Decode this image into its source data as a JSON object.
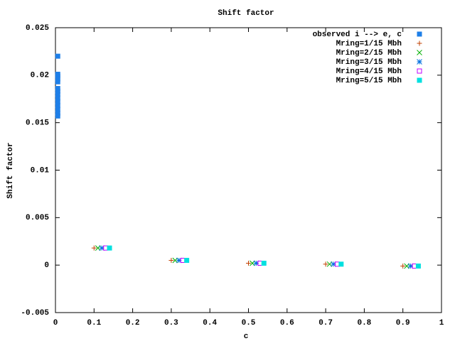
{
  "chart_data": {
    "type": "scatter",
    "title": "Shift factor",
    "x_label": "c",
    "y_label": "Shift factor",
    "xlim": [
      0,
      1
    ],
    "ylim": [
      -0.005,
      0.025
    ],
    "xticks": [
      0,
      0.1,
      0.2,
      0.3,
      0.4,
      0.5,
      0.6,
      0.7,
      0.8,
      0.9,
      1
    ],
    "yticks": [
      -0.005,
      0,
      0.005,
      0.01,
      0.015,
      0.02,
      0.025
    ],
    "legend": "top-right",
    "series": [
      {
        "name": "observed i --> e, c",
        "color": "#1e7fe8",
        "marker": "filled-square",
        "x": [
          0.006,
          0.006,
          0.006,
          0.006,
          0.006,
          0.006,
          0.006,
          0.006,
          0.006,
          0.006,
          0.006,
          0.006,
          0.006,
          0.006
        ],
        "values": [
          0.022,
          0.0201,
          0.0199,
          0.0196,
          0.0193,
          0.0186,
          0.0183,
          0.018,
          0.0176,
          0.0172,
          0.0168,
          0.0164,
          0.016,
          0.0157
        ]
      },
      {
        "name": "Mring=1/15 Mbh",
        "color": "#c04000",
        "marker": "plus",
        "x": [
          0.1,
          0.3,
          0.5,
          0.7,
          0.9
        ],
        "values": [
          0.0018,
          0.0005,
          0.0002,
          0.0001,
          -0.0001
        ]
      },
      {
        "name": "Mring=2/15 Mbh",
        "color": "#00b000",
        "marker": "cross",
        "x": [
          0.11,
          0.31,
          0.51,
          0.71,
          0.91
        ],
        "values": [
          0.0018,
          0.0005,
          0.0002,
          0.0001,
          -0.0001
        ]
      },
      {
        "name": "Mring=3/15 Mbh",
        "color": "#0070e0",
        "marker": "star",
        "x": [
          0.12,
          0.32,
          0.52,
          0.72,
          0.92
        ],
        "values": [
          0.0018,
          0.0005,
          0.0002,
          0.0001,
          -0.0001
        ]
      },
      {
        "name": "Mring=4/15 Mbh",
        "color": "#c000ff",
        "marker": "open-square",
        "x": [
          0.13,
          0.33,
          0.53,
          0.73,
          0.93
        ],
        "values": [
          0.0018,
          0.0005,
          0.0002,
          0.0001,
          -0.0001
        ]
      },
      {
        "name": "Mring=5/15 Mbh",
        "color": "#00e0e0",
        "marker": "filled-square",
        "x": [
          0.14,
          0.34,
          0.54,
          0.74,
          0.94
        ],
        "values": [
          0.0018,
          0.0005,
          0.0002,
          0.0001,
          -0.0001
        ]
      }
    ]
  }
}
